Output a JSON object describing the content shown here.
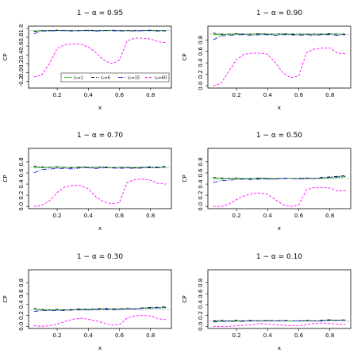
{
  "chart_data": [
    {
      "type": "line",
      "title": "1 − α = 0.95",
      "xlabel": "x",
      "ylabel": "CP",
      "xlim": [
        0.05,
        0.9
      ],
      "ylim": [
        -0.3,
        1.0
      ],
      "xticks": [
        "0.2",
        "0.4",
        "0.6",
        "0.8"
      ],
      "yticks": [
        "-0.2",
        "0.0",
        "0.2",
        "0.4",
        "0.6",
        "0.8",
        "1.0"
      ],
      "nominal": 0.95,
      "x": [
        0.05,
        0.1,
        0.15,
        0.2,
        0.25,
        0.3,
        0.35,
        0.4,
        0.45,
        0.5,
        0.55,
        0.6,
        0.65,
        0.7,
        0.75,
        0.8,
        0.85,
        0.9
      ],
      "legend": {
        "position": "bottom-right",
        "entries": [
          "s₀=1",
          "s₀=6",
          "s₀=15",
          "s₀=60"
        ]
      },
      "series": [
        {
          "name": "s₀=1",
          "color": "#22cc22",
          "dash": "solid",
          "values": [
            0.94,
            0.95,
            0.95,
            0.95,
            0.95,
            0.95,
            0.95,
            0.95,
            0.95,
            0.95,
            0.95,
            0.95,
            0.95,
            0.95,
            0.95,
            0.95,
            0.95,
            0.95
          ]
        },
        {
          "name": "s₀=6",
          "color": "#000000",
          "dash": "4,2,1,2",
          "values": [
            0.93,
            0.95,
            0.95,
            0.96,
            0.95,
            0.95,
            0.95,
            0.96,
            0.95,
            0.95,
            0.96,
            0.95,
            0.95,
            0.95,
            0.95,
            0.96,
            0.95,
            0.95
          ]
        },
        {
          "name": "s₀=15",
          "color": "#2222cc",
          "dash": "6,2,1,2",
          "values": [
            0.88,
            0.94,
            0.94,
            0.95,
            0.95,
            0.94,
            0.95,
            0.95,
            0.94,
            0.95,
            0.95,
            0.94,
            0.95,
            0.94,
            0.95,
            0.95,
            0.94,
            0.94
          ]
        },
        {
          "name": "s₀=60",
          "color": "#ff00ff",
          "dash": "3,2",
          "values": [
            -0.1,
            -0.06,
            0.2,
            0.55,
            0.63,
            0.65,
            0.64,
            0.58,
            0.45,
            0.28,
            0.2,
            0.28,
            0.72,
            0.78,
            0.78,
            0.76,
            0.7,
            0.68
          ]
        }
      ]
    },
    {
      "type": "line",
      "title": "1 − α = 0.90",
      "xlabel": "x",
      "ylabel": "CP",
      "xlim": [
        0.05,
        0.9
      ],
      "ylim": [
        0.0,
        1.0
      ],
      "xticks": [
        "0.2",
        "0.4",
        "0.6",
        "0.8"
      ],
      "yticks": [
        "0.0",
        "0.2",
        "0.4",
        "0.6",
        "0.8"
      ],
      "nominal": 0.9,
      "x": [
        0.05,
        0.1,
        0.15,
        0.2,
        0.25,
        0.3,
        0.35,
        0.4,
        0.45,
        0.5,
        0.55,
        0.6,
        0.65,
        0.7,
        0.75,
        0.8,
        0.85,
        0.9
      ],
      "series": [
        {
          "name": "s₀=1",
          "color": "#22cc22",
          "dash": "solid",
          "values": [
            0.89,
            0.89,
            0.9,
            0.9,
            0.9,
            0.9,
            0.9,
            0.9,
            0.9,
            0.9,
            0.9,
            0.9,
            0.9,
            0.9,
            0.9,
            0.9,
            0.9,
            0.9
          ]
        },
        {
          "name": "s₀=6",
          "color": "#000000",
          "dash": "4,2,1,2",
          "values": [
            0.92,
            0.9,
            0.9,
            0.91,
            0.9,
            0.9,
            0.91,
            0.9,
            0.9,
            0.91,
            0.9,
            0.9,
            0.9,
            0.9,
            0.9,
            0.91,
            0.9,
            0.9
          ]
        },
        {
          "name": "s₀=15",
          "color": "#2222cc",
          "dash": "6,2,1,2",
          "values": [
            0.8,
            0.87,
            0.88,
            0.89,
            0.89,
            0.88,
            0.89,
            0.89,
            0.88,
            0.89,
            0.89,
            0.88,
            0.89,
            0.88,
            0.89,
            0.89,
            0.88,
            0.89
          ]
        },
        {
          "name": "s₀=60",
          "color": "#ff00ff",
          "dash": "3,2",
          "values": [
            0.0,
            0.04,
            0.25,
            0.46,
            0.55,
            0.57,
            0.57,
            0.55,
            0.4,
            0.22,
            0.14,
            0.17,
            0.58,
            0.64,
            0.66,
            0.66,
            0.57,
            0.56
          ]
        }
      ]
    },
    {
      "type": "line",
      "title": "1 − α = 0.70",
      "xlabel": "x",
      "ylabel": "CP",
      "xlim": [
        0.05,
        0.9
      ],
      "ylim": [
        0.0,
        1.0
      ],
      "xticks": [
        "0.2",
        "0.4",
        "0.6",
        "0.8"
      ],
      "yticks": [
        "0.0",
        "0.2",
        "0.4",
        "0.6",
        "0.8"
      ],
      "nominal": 0.7,
      "x": [
        0.05,
        0.1,
        0.15,
        0.2,
        0.25,
        0.3,
        0.35,
        0.4,
        0.45,
        0.5,
        0.55,
        0.6,
        0.65,
        0.7,
        0.75,
        0.8,
        0.85,
        0.9
      ],
      "series": [
        {
          "name": "s₀=1",
          "color": "#22cc22",
          "dash": "solid",
          "values": [
            0.69,
            0.69,
            0.7,
            0.7,
            0.7,
            0.7,
            0.7,
            0.7,
            0.7,
            0.7,
            0.7,
            0.7,
            0.7,
            0.7,
            0.7,
            0.7,
            0.7,
            0.7
          ]
        },
        {
          "name": "s₀=6",
          "color": "#000000",
          "dash": "4,2,1,2",
          "values": [
            0.72,
            0.71,
            0.7,
            0.71,
            0.7,
            0.69,
            0.71,
            0.7,
            0.7,
            0.71,
            0.69,
            0.7,
            0.7,
            0.69,
            0.7,
            0.71,
            0.7,
            0.72
          ]
        },
        {
          "name": "s₀=15",
          "color": "#2222cc",
          "dash": "6,2,1,2",
          "values": [
            0.6,
            0.66,
            0.67,
            0.68,
            0.68,
            0.67,
            0.69,
            0.69,
            0.68,
            0.69,
            0.69,
            0.68,
            0.69,
            0.68,
            0.69,
            0.69,
            0.69,
            0.7
          ]
        },
        {
          "name": "s₀=60",
          "color": "#ff00ff",
          "dash": "3,2",
          "values": [
            0.0,
            0.02,
            0.1,
            0.25,
            0.35,
            0.38,
            0.37,
            0.32,
            0.17,
            0.08,
            0.05,
            0.07,
            0.43,
            0.48,
            0.49,
            0.47,
            0.41,
            0.4
          ]
        }
      ]
    },
    {
      "type": "line",
      "title": "1 − α = 0.50",
      "xlabel": "x",
      "ylabel": "CP",
      "xlim": [
        0.05,
        0.9
      ],
      "ylim": [
        0.0,
        1.0
      ],
      "xticks": [
        "0.2",
        "0.4",
        "0.6",
        "0.8"
      ],
      "yticks": [
        "0.0",
        "0.2",
        "0.4",
        "0.6",
        "0.8"
      ],
      "nominal": 0.5,
      "x": [
        0.05,
        0.1,
        0.15,
        0.2,
        0.25,
        0.3,
        0.35,
        0.4,
        0.45,
        0.5,
        0.55,
        0.6,
        0.65,
        0.7,
        0.75,
        0.8,
        0.85,
        0.9
      ],
      "series": [
        {
          "name": "s₀=1",
          "color": "#22cc22",
          "dash": "solid",
          "values": [
            0.49,
            0.49,
            0.5,
            0.5,
            0.5,
            0.5,
            0.5,
            0.5,
            0.5,
            0.5,
            0.5,
            0.5,
            0.5,
            0.5,
            0.5,
            0.51,
            0.52,
            0.53
          ]
        },
        {
          "name": "s₀=6",
          "color": "#000000",
          "dash": "4,2,1,2",
          "values": [
            0.52,
            0.51,
            0.5,
            0.51,
            0.49,
            0.5,
            0.51,
            0.5,
            0.49,
            0.51,
            0.5,
            0.5,
            0.51,
            0.5,
            0.52,
            0.53,
            0.54,
            0.55
          ]
        },
        {
          "name": "s₀=15",
          "color": "#2222cc",
          "dash": "6,2,1,2",
          "values": [
            0.43,
            0.46,
            0.47,
            0.48,
            0.49,
            0.48,
            0.49,
            0.49,
            0.49,
            0.5,
            0.5,
            0.49,
            0.5,
            0.5,
            0.51,
            0.52,
            0.53,
            0.54
          ]
        },
        {
          "name": "s₀=60",
          "color": "#ff00ff",
          "dash": "3,2",
          "values": [
            0.0,
            0.0,
            0.04,
            0.12,
            0.19,
            0.23,
            0.24,
            0.22,
            0.12,
            0.03,
            0.0,
            0.03,
            0.3,
            0.34,
            0.34,
            0.33,
            0.28,
            0.28
          ]
        }
      ]
    },
    {
      "type": "line",
      "title": "1 − α = 0.30",
      "xlabel": "x",
      "ylabel": "CP",
      "xlim": [
        0.05,
        0.9
      ],
      "ylim": [
        0.0,
        1.0
      ],
      "xticks": [
        "0.2",
        "0.4",
        "0.6",
        "0.8"
      ],
      "yticks": [
        "0.0",
        "0.2",
        "0.4",
        "0.6",
        "0.8"
      ],
      "nominal": 0.3,
      "x": [
        0.05,
        0.1,
        0.15,
        0.2,
        0.25,
        0.3,
        0.35,
        0.4,
        0.45,
        0.5,
        0.55,
        0.6,
        0.65,
        0.7,
        0.75,
        0.8,
        0.85,
        0.9
      ],
      "series": [
        {
          "name": "s₀=1",
          "color": "#22cc22",
          "dash": "solid",
          "values": [
            0.3,
            0.3,
            0.3,
            0.3,
            0.3,
            0.3,
            0.31,
            0.31,
            0.31,
            0.31,
            0.32,
            0.32,
            0.32,
            0.32,
            0.33,
            0.33,
            0.34,
            0.34
          ]
        },
        {
          "name": "s₀=6",
          "color": "#000000",
          "dash": "4,2,1,2",
          "values": [
            0.33,
            0.31,
            0.3,
            0.31,
            0.3,
            0.31,
            0.32,
            0.31,
            0.32,
            0.33,
            0.32,
            0.32,
            0.33,
            0.32,
            0.34,
            0.35,
            0.35,
            0.36
          ]
        },
        {
          "name": "s₀=15",
          "color": "#2222cc",
          "dash": "6,2,1,2",
          "values": [
            0.27,
            0.29,
            0.29,
            0.29,
            0.29,
            0.3,
            0.3,
            0.3,
            0.31,
            0.31,
            0.31,
            0.31,
            0.32,
            0.32,
            0.33,
            0.34,
            0.34,
            0.35
          ]
        },
        {
          "name": "s₀=60",
          "color": "#ff00ff",
          "dash": "3,2",
          "values": [
            0.01,
            0.0,
            0.01,
            0.04,
            0.09,
            0.13,
            0.15,
            0.13,
            0.1,
            0.06,
            0.02,
            0.03,
            0.15,
            0.19,
            0.2,
            0.19,
            0.14,
            0.12
          ]
        }
      ]
    },
    {
      "type": "line",
      "title": "1 − α = 0.10",
      "xlabel": "x",
      "ylabel": "CP",
      "xlim": [
        0.05,
        0.9
      ],
      "ylim": [
        0.0,
        1.0
      ],
      "xticks": [
        "0.2",
        "0.4",
        "0.6",
        "0.8"
      ],
      "yticks": [
        "0.0",
        "0.2",
        "0.4",
        "0.6",
        "0.8"
      ],
      "nominal": 0.1,
      "x": [
        0.05,
        0.1,
        0.15,
        0.2,
        0.25,
        0.3,
        0.35,
        0.4,
        0.45,
        0.5,
        0.55,
        0.6,
        0.65,
        0.7,
        0.75,
        0.8,
        0.85,
        0.9
      ],
      "series": [
        {
          "name": "s₀=1",
          "color": "#22cc22",
          "dash": "solid",
          "values": [
            0.09,
            0.09,
            0.1,
            0.1,
            0.1,
            0.1,
            0.1,
            0.1,
            0.1,
            0.1,
            0.1,
            0.1,
            0.1,
            0.1,
            0.1,
            0.11,
            0.11,
            0.11
          ]
        },
        {
          "name": "s₀=6",
          "color": "#000000",
          "dash": "4,2,1,2",
          "values": [
            0.1,
            0.11,
            0.1,
            0.11,
            0.1,
            0.11,
            0.1,
            0.11,
            0.1,
            0.11,
            0.1,
            0.1,
            0.11,
            0.1,
            0.11,
            0.12,
            0.11,
            0.12
          ]
        },
        {
          "name": "s₀=15",
          "color": "#2222cc",
          "dash": "6,2,1,2",
          "values": [
            0.08,
            0.09,
            0.09,
            0.09,
            0.09,
            0.1,
            0.1,
            0.1,
            0.1,
            0.1,
            0.1,
            0.1,
            0.1,
            0.1,
            0.1,
            0.11,
            0.11,
            0.11
          ]
        },
        {
          "name": "s₀=60",
          "color": "#ff00ff",
          "dash": "3,2",
          "values": [
            0.0,
            0.0,
            0.0,
            0.01,
            0.02,
            0.03,
            0.05,
            0.04,
            0.03,
            0.02,
            0.01,
            0.01,
            0.03,
            0.05,
            0.06,
            0.05,
            0.04,
            0.03
          ]
        }
      ]
    }
  ]
}
